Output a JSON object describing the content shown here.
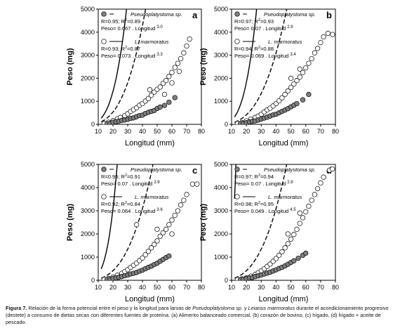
{
  "caption": {
    "label": "Figura 7.",
    "text_a": " Relación de la forma potencial entre el peso y la longitud para larvas de ",
    "sp1": "Pseudoplatystoma sp.",
    "text_b": " y ",
    "sp2": "Leiarius marmoratus",
    "text_c": " durante el acondicionamiento progresivo (destete) a consumo de dietas secas con diferentes fuentes de proteína. (a) Alimento balanceado comercial, (b) corazón de bovino, (c) hígado, (d) hígado + aceite de pescado."
  },
  "colors": {
    "pseudo_fill": "#7f7f7f",
    "marmoratus_fill": "#ffffff",
    "stroke": "#000000"
  },
  "chart_data": [
    {
      "type": "scatter",
      "panel": "a",
      "xlabel": "Longitud (mm)",
      "ylabel": "Peso (mg)",
      "xlim": [
        10,
        80
      ],
      "ylim": [
        0,
        5000
      ],
      "xticks": [
        10,
        20,
        30,
        40,
        50,
        60,
        70,
        80
      ],
      "yticks": [
        0,
        1000,
        2000,
        3000,
        4000,
        5000
      ],
      "series": [
        {
          "name": "Pseudoplatystoma sp.",
          "marker": "gray-circle",
          "line": "dashed",
          "stats": "R=0.95; R2=0.89",
          "equation": "Peso= 0.067 . Longitud",
          "exponent": "3.0",
          "a": 0.067,
          "b": 3.0,
          "points": [
            [
              16,
              30
            ],
            [
              18,
              40
            ],
            [
              20,
              90
            ],
            [
              22,
              110
            ],
            [
              24,
              140
            ],
            [
              26,
              170
            ],
            [
              28,
              190
            ],
            [
              30,
              220
            ],
            [
              32,
              260
            ],
            [
              34,
              280
            ],
            [
              36,
              330
            ],
            [
              38,
              380
            ],
            [
              40,
              400
            ],
            [
              42,
              470
            ],
            [
              44,
              520
            ],
            [
              46,
              560
            ],
            [
              48,
              600
            ],
            [
              50,
              690
            ],
            [
              52,
              750
            ],
            [
              55,
              820
            ],
            [
              58,
              960
            ],
            [
              62,
              1160
            ]
          ]
        },
        {
          "name": "L. marmoratus",
          "marker": "open-circle",
          "line": "solid",
          "stats": "R=0.93; R2=0.87",
          "equation": "Peso= 0.073 . Longitud",
          "exponent": "3.3",
          "a": 0.073,
          "b": 3.3,
          "points": [
            [
              14,
              40
            ],
            [
              17,
              90
            ],
            [
              20,
              160
            ],
            [
              23,
              240
            ],
            [
              25,
              300
            ],
            [
              28,
              380
            ],
            [
              30,
              460
            ],
            [
              32,
              560
            ],
            [
              34,
              640
            ],
            [
              36,
              720
            ],
            [
              38,
              830
            ],
            [
              40,
              900
            ],
            [
              42,
              1010
            ],
            [
              44,
              1120
            ],
            [
              46,
              1260
            ],
            [
              48,
              1400
            ],
            [
              50,
              1520
            ],
            [
              52,
              1620
            ],
            [
              54,
              1780
            ],
            [
              56,
              1900
            ],
            [
              58,
              2080
            ],
            [
              60,
              2250
            ],
            [
              62,
              2470
            ],
            [
              64,
              2650
            ],
            [
              66,
              2850
            ],
            [
              68,
              3100
            ],
            [
              70,
              3400
            ],
            [
              72,
              3700
            ],
            [
              45,
              1500
            ],
            [
              55,
              1300
            ],
            [
              60,
              1800
            ],
            [
              65,
              2300
            ]
          ]
        }
      ]
    },
    {
      "type": "scatter",
      "panel": "b",
      "xlabel": "Longitud (mm)",
      "ylabel": "Peso (mg)",
      "xlim": [
        10,
        80
      ],
      "ylim": [
        0,
        5000
      ],
      "xticks": [
        10,
        20,
        30,
        40,
        50,
        60,
        70,
        80
      ],
      "yticks": [
        0,
        1000,
        2000,
        3000,
        4000,
        5000
      ],
      "series": [
        {
          "name": "Pseudoplatystoma sp.",
          "marker": "gray-circle",
          "line": "dashed",
          "stats": "R=0.97; R2=0.93",
          "equation": "Peso= 0.07 . Longitud",
          "exponent": "2.9",
          "a": 0.07,
          "b": 2.9,
          "points": [
            [
              16,
              30
            ],
            [
              18,
              50
            ],
            [
              20,
              70
            ],
            [
              22,
              100
            ],
            [
              24,
              130
            ],
            [
              26,
              150
            ],
            [
              28,
              190
            ],
            [
              30,
              230
            ],
            [
              32,
              270
            ],
            [
              34,
              310
            ],
            [
              36,
              360
            ],
            [
              38,
              410
            ],
            [
              40,
              440
            ],
            [
              42,
              500
            ],
            [
              44,
              560
            ],
            [
              46,
              620
            ],
            [
              48,
              680
            ],
            [
              50,
              760
            ],
            [
              52,
              830
            ],
            [
              54,
              900
            ],
            [
              58,
              1060
            ],
            [
              62,
              1300
            ]
          ]
        },
        {
          "name": "L. marmoratus",
          "marker": "open-circle",
          "line": "solid",
          "stats": "R=0.94; R2=0.88",
          "equation": "Peso= 0.069 . Longitud",
          "exponent": "3.4",
          "a": 0.069,
          "b": 3.4,
          "points": [
            [
              14,
              40
            ],
            [
              17,
              80
            ],
            [
              20,
              150
            ],
            [
              23,
              230
            ],
            [
              26,
              300
            ],
            [
              28,
              360
            ],
            [
              30,
              440
            ],
            [
              32,
              540
            ],
            [
              34,
              630
            ],
            [
              36,
              700
            ],
            [
              38,
              800
            ],
            [
              40,
              900
            ],
            [
              42,
              1020
            ],
            [
              44,
              1150
            ],
            [
              46,
              1300
            ],
            [
              48,
              1450
            ],
            [
              50,
              1600
            ],
            [
              52,
              1750
            ],
            [
              54,
              1900
            ],
            [
              56,
              2050
            ],
            [
              58,
              2250
            ],
            [
              60,
              2450
            ],
            [
              62,
              2650
            ],
            [
              64,
              2850
            ],
            [
              66,
              3100
            ],
            [
              68,
              3300
            ],
            [
              70,
              3550
            ],
            [
              72,
              3800
            ],
            [
              75,
              3950
            ],
            [
              78,
              3900
            ],
            [
              50,
              2000
            ],
            [
              56,
              2400
            ]
          ]
        }
      ]
    },
    {
      "type": "scatter",
      "panel": "c",
      "xlabel": "Longitud (mm)",
      "ylabel": "Peso (mg)",
      "xlim": [
        10,
        80
      ],
      "ylim": [
        0,
        5000
      ],
      "xticks": [
        10,
        20,
        30,
        40,
        50,
        60,
        70,
        80
      ],
      "yticks": [
        0,
        1000,
        2000,
        3000,
        4000,
        5000
      ],
      "series": [
        {
          "name": "Pseudoplatystoma sp.",
          "marker": "gray-circle",
          "line": "dashed",
          "stats": "R=0.95; R2=0.91",
          "equation": "Peso= 0.07 . Longitud",
          "exponent": "2.9",
          "a": 0.07,
          "b": 2.9,
          "points": [
            [
              16,
              30
            ],
            [
              18,
              50
            ],
            [
              20,
              80
            ],
            [
              22,
              100
            ],
            [
              24,
              130
            ],
            [
              26,
              160
            ],
            [
              28,
              200
            ],
            [
              30,
              230
            ],
            [
              32,
              270
            ],
            [
              34,
              300
            ],
            [
              36,
              340
            ],
            [
              38,
              390
            ],
            [
              40,
              440
            ],
            [
              42,
              500
            ],
            [
              44,
              560
            ],
            [
              46,
              610
            ],
            [
              48,
              680
            ],
            [
              50,
              740
            ],
            [
              52,
              820
            ],
            [
              54,
              900
            ],
            [
              56,
              980
            ],
            [
              58,
              1050
            ]
          ]
        },
        {
          "name": "L. marmoratus",
          "marker": "open-circle",
          "line": "solid",
          "stats": "R=0.92; R2=0.84",
          "equation": "Peso= 0.064 . Longitud",
          "exponent": "3.6",
          "a": 0.064,
          "b": 3.6,
          "points": [
            [
              14,
              40
            ],
            [
              17,
              80
            ],
            [
              20,
              140
            ],
            [
              23,
              220
            ],
            [
              26,
              300
            ],
            [
              28,
              380
            ],
            [
              30,
              460
            ],
            [
              32,
              560
            ],
            [
              34,
              650
            ],
            [
              36,
              740
            ],
            [
              38,
              850
            ],
            [
              40,
              960
            ],
            [
              42,
              1100
            ],
            [
              44,
              1250
            ],
            [
              46,
              1400
            ],
            [
              48,
              1550
            ],
            [
              50,
              1700
            ],
            [
              52,
              1900
            ],
            [
              54,
              2050
            ],
            [
              56,
              2200
            ],
            [
              58,
              2400
            ],
            [
              60,
              2600
            ],
            [
              62,
              2800
            ],
            [
              64,
              3000
            ],
            [
              66,
              3250
            ],
            [
              68,
              3450
            ],
            [
              70,
              3700
            ],
            [
              74,
              4150
            ],
            [
              77,
              4150
            ],
            [
              36,
              2400
            ],
            [
              50,
              2200
            ],
            [
              60,
              2000
            ]
          ]
        }
      ]
    },
    {
      "type": "scatter",
      "panel": "d",
      "xlabel": "Longitud (mm)",
      "ylabel": "Peso (mg)",
      "xlim": [
        10,
        80
      ],
      "ylim": [
        0,
        5000
      ],
      "xticks": [
        10,
        20,
        30,
        40,
        50,
        60,
        70,
        80
      ],
      "yticks": [
        0,
        1000,
        2000,
        3000,
        4000,
        5000
      ],
      "series": [
        {
          "name": "Pseudoplatystoma sp.",
          "marker": "gray-circle",
          "line": "dashed",
          "stats": "R=0.97; R2=0.94",
          "equation": "Peso= 0.07 . Longitud",
          "exponent": "2.9",
          "a": 0.07,
          "b": 2.9,
          "points": [
            [
              16,
              30
            ],
            [
              18,
              50
            ],
            [
              20,
              70
            ],
            [
              22,
              100
            ],
            [
              24,
              120
            ],
            [
              26,
              160
            ],
            [
              28,
              190
            ],
            [
              30,
              230
            ],
            [
              32,
              270
            ],
            [
              34,
              310
            ],
            [
              36,
              350
            ],
            [
              38,
              400
            ],
            [
              40,
              450
            ],
            [
              42,
              510
            ],
            [
              44,
              560
            ],
            [
              46,
              620
            ],
            [
              48,
              690
            ],
            [
              50,
              770
            ],
            [
              52,
              840
            ],
            [
              55,
              950
            ],
            [
              58,
              1080
            ],
            [
              60,
              1170
            ]
          ]
        },
        {
          "name": "L. marmoratus",
          "marker": "open-circle",
          "line": "solid",
          "stats": "R=0.98; R2=0.95",
          "equation": "Peso= 0.049 . Longitud",
          "exponent": "4.5",
          "a": 0.049,
          "b": 4.5,
          "points": [
            [
              14,
              30
            ],
            [
              17,
              60
            ],
            [
              20,
              110
            ],
            [
              23,
              180
            ],
            [
              26,
              260
            ],
            [
              28,
              330
            ],
            [
              30,
              410
            ],
            [
              32,
              500
            ],
            [
              34,
              600
            ],
            [
              36,
              700
            ],
            [
              38,
              820
            ],
            [
              40,
              940
            ],
            [
              42,
              1080
            ],
            [
              44,
              1230
            ],
            [
              46,
              1400
            ],
            [
              48,
              1580
            ],
            [
              50,
              1780
            ],
            [
              52,
              1980
            ],
            [
              54,
              2200
            ],
            [
              56,
              2450
            ],
            [
              58,
              2700
            ],
            [
              60,
              2950
            ],
            [
              62,
              3200
            ],
            [
              64,
              3450
            ],
            [
              66,
              3700
            ],
            [
              68,
              3950
            ],
            [
              70,
              4200
            ],
            [
              72,
              4450
            ],
            [
              76,
              4750
            ],
            [
              78,
              4800
            ],
            [
              48,
              2000
            ],
            [
              56,
              2900
            ]
          ]
        }
      ]
    }
  ]
}
